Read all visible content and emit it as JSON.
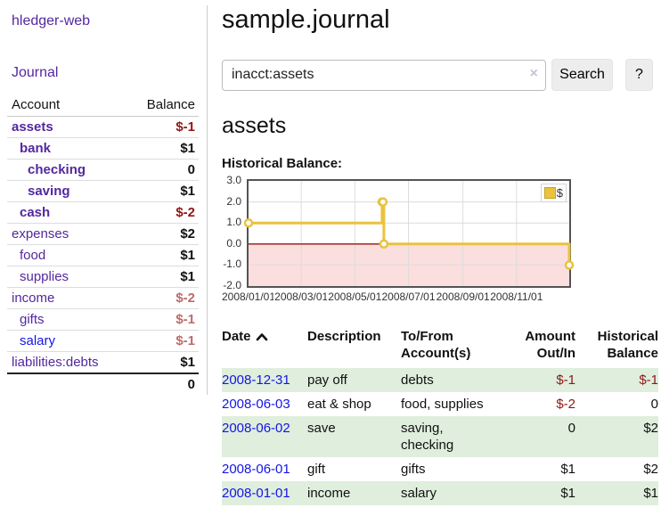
{
  "app": {
    "title": "hledger-web",
    "nav_journal": "Journal"
  },
  "colors": {
    "link_purple": "#54279F",
    "link_blue": "#1515E6",
    "negative_strong": "#8E1616",
    "negative_soft": "#BE6A6A",
    "row_green": "#DFEEDD",
    "chart_gold": "#E9C23F",
    "chart_gold_border": "#C9A227",
    "chart_pink": "#FBDEDE",
    "chart_zero_red": "#991111",
    "chart_grid": "#DCDCDC",
    "plot_border": "#545454",
    "divider": "#CCCCCC",
    "button_bg": "#EDEDED",
    "clear_x": "#C9BEDF"
  },
  "sidebar": {
    "headers": {
      "account": "Account",
      "balance": "Balance"
    },
    "accounts": [
      {
        "name": "assets",
        "indent": 1,
        "matched": true,
        "link_color": "purple",
        "balance": "$-1",
        "balance_tone": "neg-strong"
      },
      {
        "name": "bank",
        "indent": 2,
        "matched": true,
        "link_color": "purple",
        "balance": "$1",
        "balance_tone": "normal"
      },
      {
        "name": "checking",
        "indent": 3,
        "matched": true,
        "link_color": "purple",
        "balance": "0",
        "balance_tone": "normal"
      },
      {
        "name": "saving",
        "indent": 3,
        "matched": true,
        "link_color": "purple",
        "balance": "$1",
        "balance_tone": "normal"
      },
      {
        "name": "cash",
        "indent": 2,
        "matched": true,
        "link_color": "purple",
        "balance": "$-2",
        "balance_tone": "neg-strong"
      },
      {
        "name": "expenses",
        "indent": 1,
        "matched": false,
        "link_color": "purple",
        "balance": "$2",
        "balance_tone": "normal"
      },
      {
        "name": "food",
        "indent": 2,
        "matched": false,
        "link_color": "purple",
        "balance": "$1",
        "balance_tone": "normal"
      },
      {
        "name": "supplies",
        "indent": 2,
        "matched": false,
        "link_color": "purple",
        "balance": "$1",
        "balance_tone": "normal"
      },
      {
        "name": "income",
        "indent": 1,
        "matched": false,
        "link_color": "purple",
        "balance": "$-2",
        "balance_tone": "neg-soft"
      },
      {
        "name": "gifts",
        "indent": 2,
        "matched": false,
        "link_color": "purple",
        "balance": "$-1",
        "balance_tone": "neg-soft"
      },
      {
        "name": "salary",
        "indent": 2,
        "matched": false,
        "link_color": "blue",
        "balance": "$-1",
        "balance_tone": "neg-soft"
      },
      {
        "name": "liabilities:debts",
        "indent": 1,
        "matched": false,
        "link_color": "purple",
        "balance": "$1",
        "balance_tone": "normal"
      }
    ],
    "total": "0"
  },
  "page": {
    "title": "sample.journal"
  },
  "search": {
    "value": "inacct:assets",
    "clear_icon": "×",
    "button_label": "Search",
    "help_label": "?"
  },
  "account_page": {
    "heading": "assets",
    "chart_label": "Historical Balance:"
  },
  "chart_data": {
    "type": "line",
    "step": true,
    "title": "Historical Balance:",
    "series": [
      {
        "name": "$",
        "color": "#E9C23F",
        "points": [
          [
            "2008-01-01",
            1
          ],
          [
            "2008-06-01",
            2
          ],
          [
            "2008-06-02",
            2
          ],
          [
            "2008-06-03",
            0
          ],
          [
            "2008-12-31",
            -1
          ]
        ]
      }
    ],
    "x_range": [
      "2008-01-01",
      "2008-12-31"
    ],
    "ylim": [
      -2,
      3
    ],
    "x_ticks": [
      {
        "label": "2008/01/01"
      },
      {
        "label": "2008/03/01"
      },
      {
        "label": "2008/05/01"
      },
      {
        "label": "2008/07/01"
      },
      {
        "label": "2008/09/01"
      },
      {
        "label": "2008/11/01"
      }
    ],
    "y_ticks": [
      {
        "label": "3.0",
        "value": 3
      },
      {
        "label": "2.0",
        "value": 2
      },
      {
        "label": "1.0",
        "value": 1
      },
      {
        "label": "0.0",
        "value": 0
      },
      {
        "label": "-1.0",
        "value": -1
      },
      {
        "label": "-2.0",
        "value": -2
      }
    ],
    "negative_region_fill": "#FBDEDE",
    "zero_line_color": "#991111",
    "grid": true,
    "legend": {
      "position": "top-right",
      "items": [
        {
          "label": "$",
          "color": "#E9C23F"
        }
      ]
    }
  },
  "register": {
    "headers": [
      {
        "line1": "Date",
        "line2": "",
        "sort_asc": true,
        "align": "left"
      },
      {
        "line1": "Description",
        "line2": "",
        "sort_asc": false,
        "align": "left"
      },
      {
        "line1": "To/From",
        "line2": "Account(s)",
        "sort_asc": false,
        "align": "left"
      },
      {
        "line1": "Amount",
        "line2": "Out/In",
        "sort_asc": false,
        "align": "right"
      },
      {
        "line1": "Historical",
        "line2": "Balance",
        "sort_asc": false,
        "align": "right"
      }
    ],
    "rows": [
      {
        "date": "2008-12-31",
        "description": "pay off",
        "accounts": "debts",
        "amount": "$-1",
        "amount_tone": "neg-strong",
        "balance": "$-1",
        "balance_tone": "neg-strong",
        "shaded": true
      },
      {
        "date": "2008-06-03",
        "description": "eat & shop",
        "accounts": "food, supplies",
        "amount": "$-2",
        "amount_tone": "neg-strong",
        "balance": "0",
        "balance_tone": "normal",
        "shaded": false
      },
      {
        "date": "2008-06-02",
        "description": "save",
        "accounts": "saving, checking",
        "amount": "0",
        "amount_tone": "normal",
        "balance": "$2",
        "balance_tone": "normal",
        "shaded": true
      },
      {
        "date": "2008-06-01",
        "description": "gift",
        "accounts": "gifts",
        "amount": "$1",
        "amount_tone": "normal",
        "balance": "$2",
        "balance_tone": "normal",
        "shaded": false
      },
      {
        "date": "2008-01-01",
        "description": "income",
        "accounts": "salary",
        "amount": "$1",
        "amount_tone": "normal",
        "balance": "$1",
        "balance_tone": "normal",
        "shaded": true
      }
    ]
  }
}
